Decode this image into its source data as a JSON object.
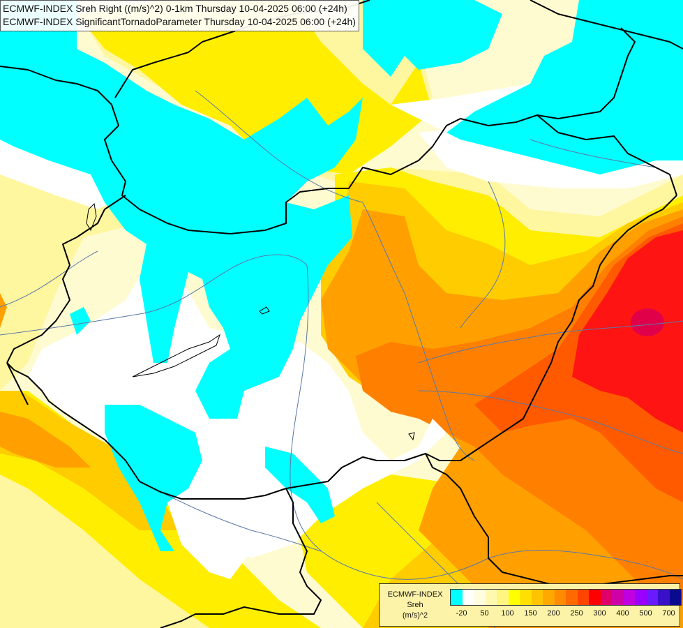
{
  "title": {
    "line1": "ECMWF-INDEX Sreh Right ((m/s)^2) 0-1km Thursday 10-04-2025 06:00 (+24h)",
    "line2": "ECMWF-INDEX SignificantTornadoParameter Thursday 10-04-2025 06:00 (+24h)"
  },
  "legend": {
    "title_line1": "ECMWF-INDEX",
    "title_line2": "Sreh",
    "title_line3": "(m/s)^2",
    "swatches": [
      "#00ffff",
      "#ffffff",
      "#fffde0",
      "#fff9b0",
      "#fff580",
      "#ffff00",
      "#ffe000",
      "#ffc400",
      "#ffa800",
      "#ff8c00",
      "#ff6a00",
      "#ff4400",
      "#ff0000",
      "#e0006a",
      "#d000a8",
      "#c000e0",
      "#9a00ff",
      "#6a1aff",
      "#3a10c8",
      "#0a0a90"
    ],
    "ticks": [
      {
        "label": "-20",
        "index": 1
      },
      {
        "label": "50",
        "index": 3
      },
      {
        "label": "100",
        "index": 5
      },
      {
        "label": "150",
        "index": 7
      },
      {
        "label": "200",
        "index": 9
      },
      {
        "label": "250",
        "index": 11
      },
      {
        "label": "300",
        "index": 13
      },
      {
        "label": "400",
        "index": 15
      },
      {
        "label": "500",
        "index": 17
      },
      {
        "label": "700",
        "index": 19
      }
    ]
  },
  "colors": {
    "cyan": "#00ffff",
    "white": "#ffffff",
    "pale_yellow": "#fffbd0",
    "light_yellow": "#fff6a0",
    "yellow": "#ffee00",
    "gold": "#ffcc00",
    "orange_light": "#ffb000",
    "orange": "#ff9000",
    "orange_dark": "#ff7000",
    "red_orange": "#ff5000",
    "red": "#ff1010",
    "crimson": "#e0004a",
    "border": "#000000",
    "river": "#5a78a8"
  }
}
